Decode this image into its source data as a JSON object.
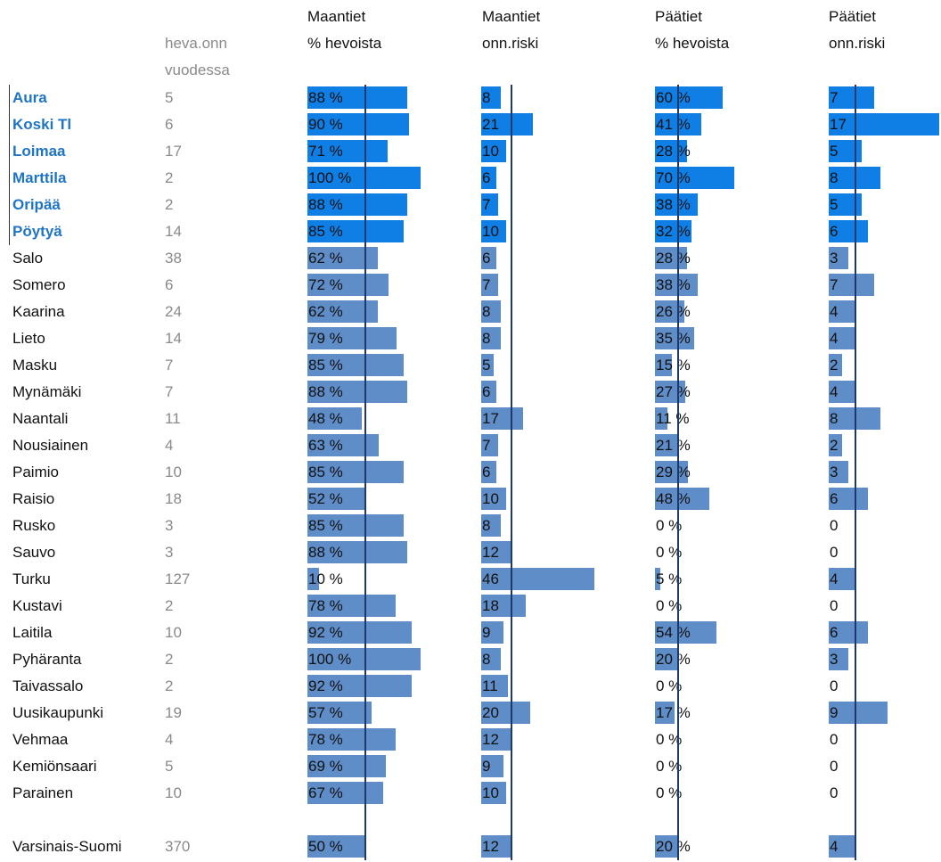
{
  "headers": {
    "count_line1": "heva.onn",
    "count_line2": "vuodessa",
    "c1_line1": "Maantiet",
    "c1_line2": "% hevoista",
    "c2_line1": "Maantiet",
    "c2_line2": "onn.riski",
    "c3_line1": "Päätiet",
    "c3_line2": "% hevoista",
    "c4_line1": "Päätiet",
    "c4_line2": "onn.riski"
  },
  "colors": {
    "highlight": "#0f7fe6",
    "standard": "#5f8dc8",
    "reference_line": "#1b3a6b",
    "highlight_text": "#1f74c4"
  },
  "chart_data": {
    "type": "table",
    "columns": [
      "Maantiet % hevoista",
      "Maantiet onn.riski",
      "Päätiet % hevoista",
      "Päätiet onn.riski"
    ],
    "reference": {
      "Maantiet % hevoista": 50,
      "Maantiet onn.riski": 12,
      "Päätiet % hevoista": 20,
      "Päätiet onn.riski": 4
    },
    "rows": [
      {
        "name": "Aura",
        "count": "5",
        "highlight": true,
        "m_pct": 88,
        "m_risk": 8,
        "p_pct": 60,
        "p_risk": 7
      },
      {
        "name": "Koski Tl",
        "count": "6",
        "highlight": true,
        "m_pct": 90,
        "m_risk": 21,
        "p_pct": 41,
        "p_risk": 17
      },
      {
        "name": "Loimaa",
        "count": "17",
        "highlight": true,
        "m_pct": 71,
        "m_risk": 10,
        "p_pct": 28,
        "p_risk": 5
      },
      {
        "name": "Marttila",
        "count": "2",
        "highlight": true,
        "m_pct": 100,
        "m_risk": 6,
        "p_pct": 70,
        "p_risk": 8
      },
      {
        "name": "Oripää",
        "count": "2",
        "highlight": true,
        "m_pct": 88,
        "m_risk": 7,
        "p_pct": 38,
        "p_risk": 5
      },
      {
        "name": "Pöytyä",
        "count": "14",
        "highlight": true,
        "m_pct": 85,
        "m_risk": 10,
        "p_pct": 32,
        "p_risk": 6
      },
      {
        "name": "Salo",
        "count": "38",
        "highlight": false,
        "m_pct": 62,
        "m_risk": 6,
        "p_pct": 28,
        "p_risk": 3
      },
      {
        "name": "Somero",
        "count": "6",
        "highlight": false,
        "m_pct": 72,
        "m_risk": 7,
        "p_pct": 38,
        "p_risk": 7
      },
      {
        "name": "Kaarina",
        "count": "24",
        "highlight": false,
        "m_pct": 62,
        "m_risk": 8,
        "p_pct": 26,
        "p_risk": 4
      },
      {
        "name": "Lieto",
        "count": "14",
        "highlight": false,
        "m_pct": 79,
        "m_risk": 8,
        "p_pct": 35,
        "p_risk": 4
      },
      {
        "name": "Masku",
        "count": "7",
        "highlight": false,
        "m_pct": 85,
        "m_risk": 5,
        "p_pct": 15,
        "p_risk": 2
      },
      {
        "name": "Mynämäki",
        "count": "7",
        "highlight": false,
        "m_pct": 88,
        "m_risk": 6,
        "p_pct": 27,
        "p_risk": 4
      },
      {
        "name": "Naantali",
        "count": "11",
        "highlight": false,
        "m_pct": 48,
        "m_risk": 17,
        "p_pct": 11,
        "p_risk": 8
      },
      {
        "name": "Nousiainen",
        "count": "4",
        "highlight": false,
        "m_pct": 63,
        "m_risk": 7,
        "p_pct": 21,
        "p_risk": 2
      },
      {
        "name": "Paimio",
        "count": "10",
        "highlight": false,
        "m_pct": 85,
        "m_risk": 6,
        "p_pct": 29,
        "p_risk": 3
      },
      {
        "name": "Raisio",
        "count": "18",
        "highlight": false,
        "m_pct": 52,
        "m_risk": 10,
        "p_pct": 48,
        "p_risk": 6
      },
      {
        "name": "Rusko",
        "count": "3",
        "highlight": false,
        "m_pct": 85,
        "m_risk": 8,
        "p_pct": 0,
        "p_risk": 0
      },
      {
        "name": "Sauvo",
        "count": "3",
        "highlight": false,
        "m_pct": 88,
        "m_risk": 12,
        "p_pct": 0,
        "p_risk": 0
      },
      {
        "name": "Turku",
        "count": "127",
        "highlight": false,
        "m_pct": 10,
        "m_risk": 46,
        "p_pct": 5,
        "p_risk": 4
      },
      {
        "name": "Kustavi",
        "count": "2",
        "highlight": false,
        "m_pct": 78,
        "m_risk": 18,
        "p_pct": 0,
        "p_risk": 0
      },
      {
        "name": "Laitila",
        "count": "10",
        "highlight": false,
        "m_pct": 92,
        "m_risk": 9,
        "p_pct": 54,
        "p_risk": 6
      },
      {
        "name": "Pyhäranta",
        "count": "2",
        "highlight": false,
        "m_pct": 100,
        "m_risk": 8,
        "p_pct": 20,
        "p_risk": 3
      },
      {
        "name": "Taivassalo",
        "count": "2",
        "highlight": false,
        "m_pct": 92,
        "m_risk": 11,
        "p_pct": 0,
        "p_risk": 0
      },
      {
        "name": "Uusikaupunki",
        "count": "19",
        "highlight": false,
        "m_pct": 57,
        "m_risk": 20,
        "p_pct": 17,
        "p_risk": 9
      },
      {
        "name": "Vehmaa",
        "count": "4",
        "highlight": false,
        "m_pct": 78,
        "m_risk": 12,
        "p_pct": 0,
        "p_risk": 0
      },
      {
        "name": "Kemiönsaari",
        "count": "5",
        "highlight": false,
        "m_pct": 69,
        "m_risk": 9,
        "p_pct": 0,
        "p_risk": 0
      },
      {
        "name": "Parainen",
        "count": "10",
        "highlight": false,
        "m_pct": 67,
        "m_risk": 10,
        "p_pct": 0,
        "p_risk": 0
      }
    ],
    "total": {
      "name": "Varsinais-Suomi",
      "count": "370",
      "m_pct": 50,
      "m_risk": 12,
      "p_pct": 20,
      "p_risk": 4
    }
  }
}
